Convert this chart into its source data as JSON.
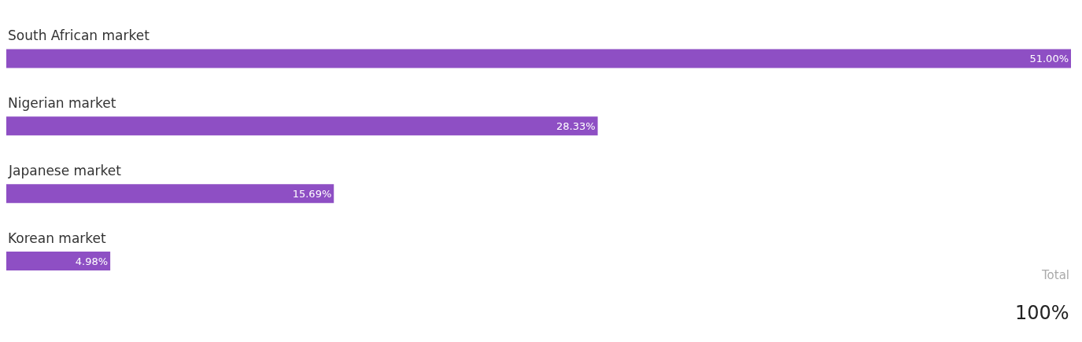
{
  "chart_data": {
    "type": "bar",
    "orientation": "horizontal",
    "categories": [
      "South African market",
      "Nigerian market",
      "Japanese market",
      "Korean market"
    ],
    "values": [
      51.0,
      28.33,
      15.69,
      4.98
    ],
    "value_labels": [
      "51.00%",
      "28.33%",
      "15.69%",
      "4.98%"
    ],
    "color": "#8e4fc4",
    "xlim": [
      0,
      51
    ],
    "tick_labels": false,
    "annotations": [
      "Total",
      "100%"
    ]
  }
}
